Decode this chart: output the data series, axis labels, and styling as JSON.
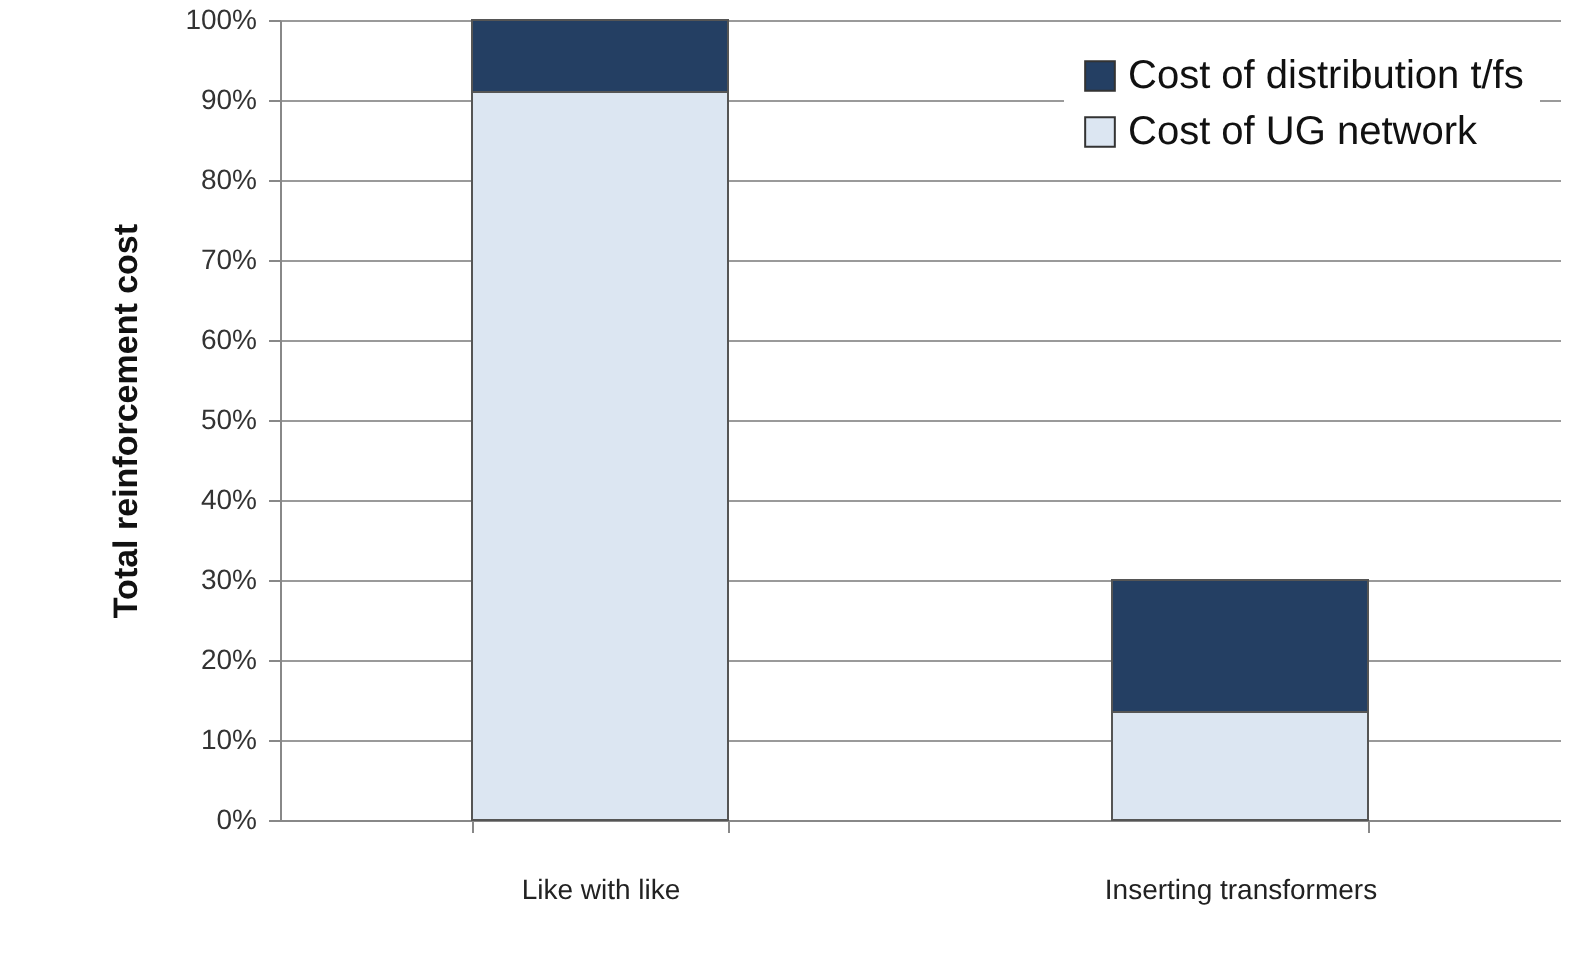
{
  "chart_data": {
    "type": "bar",
    "stacked": true,
    "ylabel": "Total reinforcement  cost",
    "categories": [
      "Like with like",
      "Inserting transformers"
    ],
    "series": [
      {
        "name": "Cost of UG network",
        "color": "#dce6f2",
        "values": [
          91,
          13.5
        ]
      },
      {
        "name": "Cost of distribution t/fs",
        "color": "#243f63",
        "values": [
          9,
          16.5
        ]
      }
    ],
    "ylim": [
      0,
      100
    ],
    "yticks": [
      {
        "value": 0,
        "label": "0%"
      },
      {
        "value": 10,
        "label": "10%"
      },
      {
        "value": 20,
        "label": "20%"
      },
      {
        "value": 30,
        "label": "30%"
      },
      {
        "value": 40,
        "label": "40%"
      },
      {
        "value": 50,
        "label": "50%"
      },
      {
        "value": 60,
        "label": "60%"
      },
      {
        "value": 70,
        "label": "70%"
      },
      {
        "value": 80,
        "label": "80%"
      },
      {
        "value": 90,
        "label": "90%"
      },
      {
        "value": 100,
        "label": "100%"
      }
    ],
    "grid": "y",
    "legend": "top right"
  }
}
